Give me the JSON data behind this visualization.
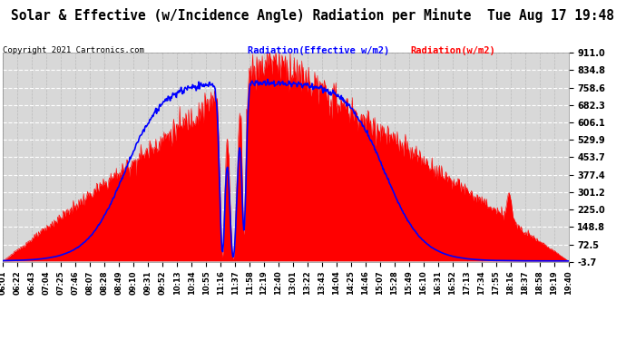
{
  "title": "Solar & Effective (w/Incidence Angle) Radiation per Minute  Tue Aug 17 19:48",
  "copyright": "Copyright 2021 Cartronics.com",
  "legend_effective": "Radiation(Effective w/m2)",
  "legend_radiation": "Radiation(w/m2)",
  "y_ticks": [
    911.0,
    834.8,
    758.6,
    682.3,
    606.1,
    529.9,
    453.7,
    377.4,
    301.2,
    225.0,
    148.8,
    72.5,
    -3.7
  ],
  "y_min": -3.7,
  "y_max": 911.0,
  "bg_color": "#ffffff",
  "plot_bg_color": "#d8d8d8",
  "grid_color": "#ffffff",
  "fill_color": "#ff0000",
  "line_color_effective": "#0000ff",
  "line_color_radiation": "#ff0000",
  "title_fontsize": 11,
  "n_points": 830,
  "time_labels": [
    "06:01",
    "06:22",
    "06:43",
    "07:04",
    "07:25",
    "07:46",
    "08:07",
    "08:28",
    "08:49",
    "09:10",
    "09:31",
    "09:52",
    "10:13",
    "10:34",
    "10:55",
    "11:16",
    "11:37",
    "11:58",
    "12:19",
    "12:40",
    "13:01",
    "13:22",
    "13:43",
    "14:04",
    "14:25",
    "14:46",
    "15:07",
    "15:28",
    "15:49",
    "16:10",
    "16:31",
    "16:52",
    "17:13",
    "17:34",
    "17:55",
    "18:16",
    "18:37",
    "18:58",
    "19:19",
    "19:40"
  ]
}
